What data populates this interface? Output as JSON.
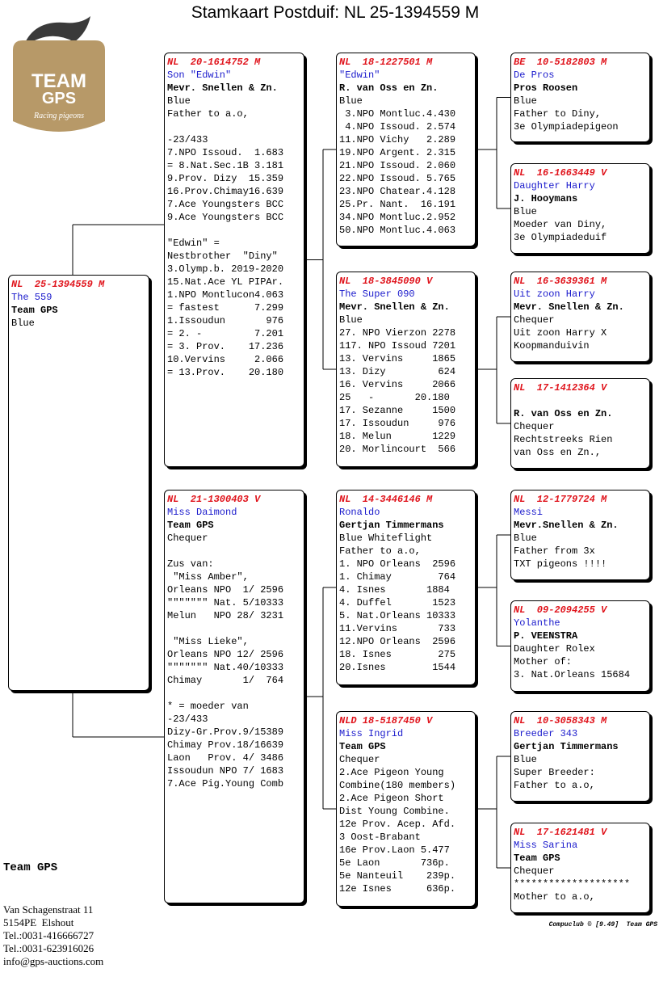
{
  "header": {
    "title": "Stamkaart Postduif: NL  25-1394559 M"
  },
  "logo": {
    "line1": "TEAM",
    "line2": "GPS",
    "tagline": "Racing pigeons"
  },
  "pedigree": {
    "subject": {
      "ring": "NL  25-1394559 M",
      "name": "The 559",
      "owner": "Team GPS",
      "lines": [
        [
          "Blue"
        ]
      ]
    },
    "parents": [
      {
        "ring": "NL  20-1614752 M",
        "name": "Son \"Edwin\"",
        "owner": "Mevr. Snellen & Zn.",
        "lines": [
          [
            "Blue",
            "Father to a.o,"
          ],
          [
            "-23/433",
            "7.NPO Issoud.  1.683",
            "= 8.Nat.Sec.1B 3.181",
            "9.Prov. Dizy  15.359",
            "16.Prov.Chimay16.639",
            "7.Ace Youngsters BCC",
            "9.Ace Youngsters BCC"
          ],
          [
            "\"Edwin\" =",
            "Nestbrother  \"Diny\"",
            "3.Olymp.b. 2019-2020",
            "15.Nat.Ace YL PIPAr.",
            "1.NPO Montlucon4.063",
            "= fastest      7.299",
            "1.Issoudun       976",
            "= 2. -         7.201",
            "= 3. Prov.    17.236",
            "10.Vervins     2.066",
            "= 13.Prov.    20.180"
          ]
        ]
      },
      {
        "ring": "NL  21-1300403 V",
        "name": "Miss Daimond",
        "owner": "Team GPS",
        "lines": [
          [
            "Chequer"
          ],
          [
            "Zus van:",
            " \"Miss Amber\",",
            "Orleans NPO  1/ 2596",
            "\"\"\"\"\"\"\" Nat. 5/10333",
            "Melun   NPO 28/ 3231"
          ],
          [
            " \"Miss Lieke\",",
            "Orleans NPO 12/ 2596",
            "\"\"\"\"\"\"\" Nat.40/10333",
            "Chimay       1/  764"
          ],
          [
            "* = moeder van",
            "-23/433",
            "Dizy-Gr.Prov.9/15389",
            "Chimay Prov.18/16639",
            "Laon   Prov. 4/ 3486",
            "Issoudun NPO 7/ 1683",
            "7.Ace Pig.Young Comb"
          ]
        ]
      }
    ],
    "grandparents": [
      {
        "ring": "NL  18-1227501 M",
        "name": "\"Edwin\"",
        "owner": "R. van Oss en Zn.",
        "lines": [
          [
            "Blue",
            " 3.NPO Montluc.4.430",
            " 4.NPO Issoud. 2.574",
            "11.NPO Vichy   2.289",
            "19.NPO Argent. 2.315",
            "21.NPO Issoud. 2.060",
            "22.NPO Issoud. 5.765",
            "23.NPO Chatear.4.128",
            "25.Pr. Nant.  16.191",
            "34.NPO Montluc.2.952",
            "50.NPO Montluc.4.063"
          ]
        ]
      },
      {
        "ring": "NL  18-3845090 V",
        "name": "The Super 090",
        "owner": "Mevr. Snellen & Zn.",
        "lines": [
          [
            "Blue",
            "27. NPO Vierzon 2278",
            "117. NPO Issoud 7201",
            "13. Vervins     1865",
            "13. Dizy         624",
            "16. Vervins     2066",
            "25   -       20.180",
            "17. Sezanne     1500",
            "17. Issoudun     976",
            "18. Melun       1229",
            "20. Morlincourt  566"
          ]
        ]
      },
      {
        "ring": "NL  14-3446146 M",
        "name": "Ronaldo",
        "owner": "Gertjan Timmermans",
        "lines": [
          [
            "Blue Whiteflight",
            "Father to a.o,",
            "1. NPO Orleans  2596",
            "1. Chimay        764",
            "4. Isnes       1884",
            "4. Duffel       1523",
            "5. Nat.Orleans 10333",
            "11.Vervins       733",
            "12.NPO Orleans  2596",
            "18. Isnes        275",
            "20.Isnes        1544"
          ]
        ]
      },
      {
        "ring": "NLD 18-5187450 V",
        "name": "Miss Ingrid",
        "owner": "Team GPS",
        "lines": [
          [
            "Chequer",
            "2.Ace Pigeon Young",
            "Combine(180 members)",
            "2.Ace Pigeon Short",
            "Dist Young Combine.",
            "12e Prov. Acep. Afd.",
            "3 Oost-Brabant",
            "16e Prov.Laon 5.477",
            "5e Laon       736p.",
            "5e Nanteuil    239p.",
            "12e Isnes      636p."
          ]
        ]
      }
    ],
    "great_grandparents": [
      {
        "ring": "BE  10-5182803 M",
        "name": "De Pros",
        "owner": "Pros Roosen",
        "lines": [
          [
            "Blue",
            "Father to Diny,",
            "3e Olympiadepigeon"
          ]
        ]
      },
      {
        "ring": "NL  16-1663449 V",
        "name": "Daughter Harry",
        "owner": "J. Hooymans",
        "lines": [
          [
            "Blue",
            "Moeder van Diny,",
            "3e Olympiadeduif"
          ]
        ]
      },
      {
        "ring": "NL  16-3639361 M",
        "name": "Uit zoon Harry",
        "owner": "Mevr. Snellen & Zn.",
        "lines": [
          [
            "Chequer",
            "Uit zoon Harry X",
            "Koopmanduivin"
          ]
        ]
      },
      {
        "ring": "NL  17-1412364 V",
        "owner": "R. van Oss en Zn.",
        "lines": [
          [
            "Chequer",
            "Rechtstreeks Rien",
            "van Oss en Zn.,"
          ]
        ]
      },
      {
        "ring": "NL  12-1779724 M",
        "name": "Messi",
        "owner": "Mevr.Snellen & Zn.",
        "lines": [
          [
            "Blue",
            "Father from 3x",
            "TXT pigeons !!!!"
          ]
        ]
      },
      {
        "ring": "NL  09-2094255 V",
        "name": "Yolanthe",
        "owner": "P. VEENSTRA",
        "lines": [
          [
            "Daughter Rolex",
            "Mother of:",
            "3. Nat.Orleans 15684"
          ]
        ]
      },
      {
        "ring": "NL  10-3058343 M",
        "name": "Breeder 343",
        "owner": "Gertjan Timmermans",
        "lines": [
          [
            "Blue",
            "Super Breeder:",
            "Father to a.o,"
          ]
        ]
      },
      {
        "ring": "NL  17-1621481 V",
        "name": "Miss Sarina",
        "owner": "Team GPS",
        "lines": [
          [
            "Chequer",
            "********************",
            "Mother to a.o,"
          ]
        ]
      }
    ]
  },
  "footer": {
    "company": "Team GPS",
    "address": [
      "Van Schagenstraat 11",
      "5154PE  Elshout",
      "Tel.:0031-416666727",
      "Tel.:0031-623916026",
      "info@gps-auctions.com"
    ],
    "credit": "Compuclub © [9.49]  Team GPS"
  }
}
